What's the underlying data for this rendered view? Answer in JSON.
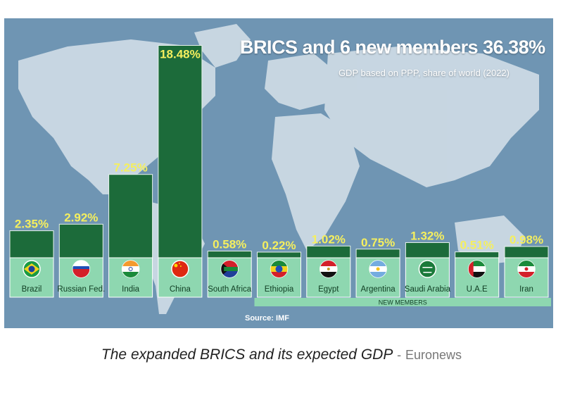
{
  "chart_data": {
    "type": "bar",
    "title": "BRICS and 6 new members 36.38%",
    "subtitle": "GDP based on PPP, share of world (2022)",
    "ylabel": "",
    "xlabel": "",
    "ylim": [
      0,
      19
    ],
    "categories": [
      "Brazil",
      "Russian Fed.",
      "India",
      "China",
      "South Africa",
      "Ethiopia",
      "Egypt",
      "Argentina",
      "Saudi Arabia",
      "U.A.E",
      "Iran"
    ],
    "values": [
      2.35,
      2.92,
      7.25,
      18.48,
      0.58,
      0.22,
      1.02,
      0.75,
      1.32,
      0.51,
      0.98
    ],
    "value_labels": [
      "2.35%",
      "2.92%",
      "7.25%",
      "18.48%",
      "0.58%",
      "0.22%",
      "1.02%",
      "0.75%",
      "1.32%",
      "0.51%",
      "0.98%"
    ],
    "group": [
      "brics",
      "brics",
      "brics",
      "brics",
      "brics",
      "new",
      "new",
      "new",
      "new",
      "new",
      "new"
    ],
    "new_members_label": "NEW MEMBERS",
    "source": "Source: IMF",
    "colors": {
      "bar": "#1c6b3a",
      "value_label": "#f5ef5e",
      "tile": "#8ed7b0",
      "tile_text": "#0f3d22",
      "background": "#6f95b3",
      "land": "#d7e2ea"
    },
    "flag_icons": [
      "brazil-flag-icon",
      "russia-flag-icon",
      "india-flag-icon",
      "china-flag-icon",
      "south-africa-flag-icon",
      "ethiopia-flag-icon",
      "egypt-flag-icon",
      "argentina-flag-icon",
      "saudi-arabia-flag-icon",
      "uae-flag-icon",
      "iran-flag-icon"
    ]
  },
  "caption": {
    "text": "The expanded BRICS and its expected GDP",
    "separator": "-",
    "credit": "Euronews"
  }
}
